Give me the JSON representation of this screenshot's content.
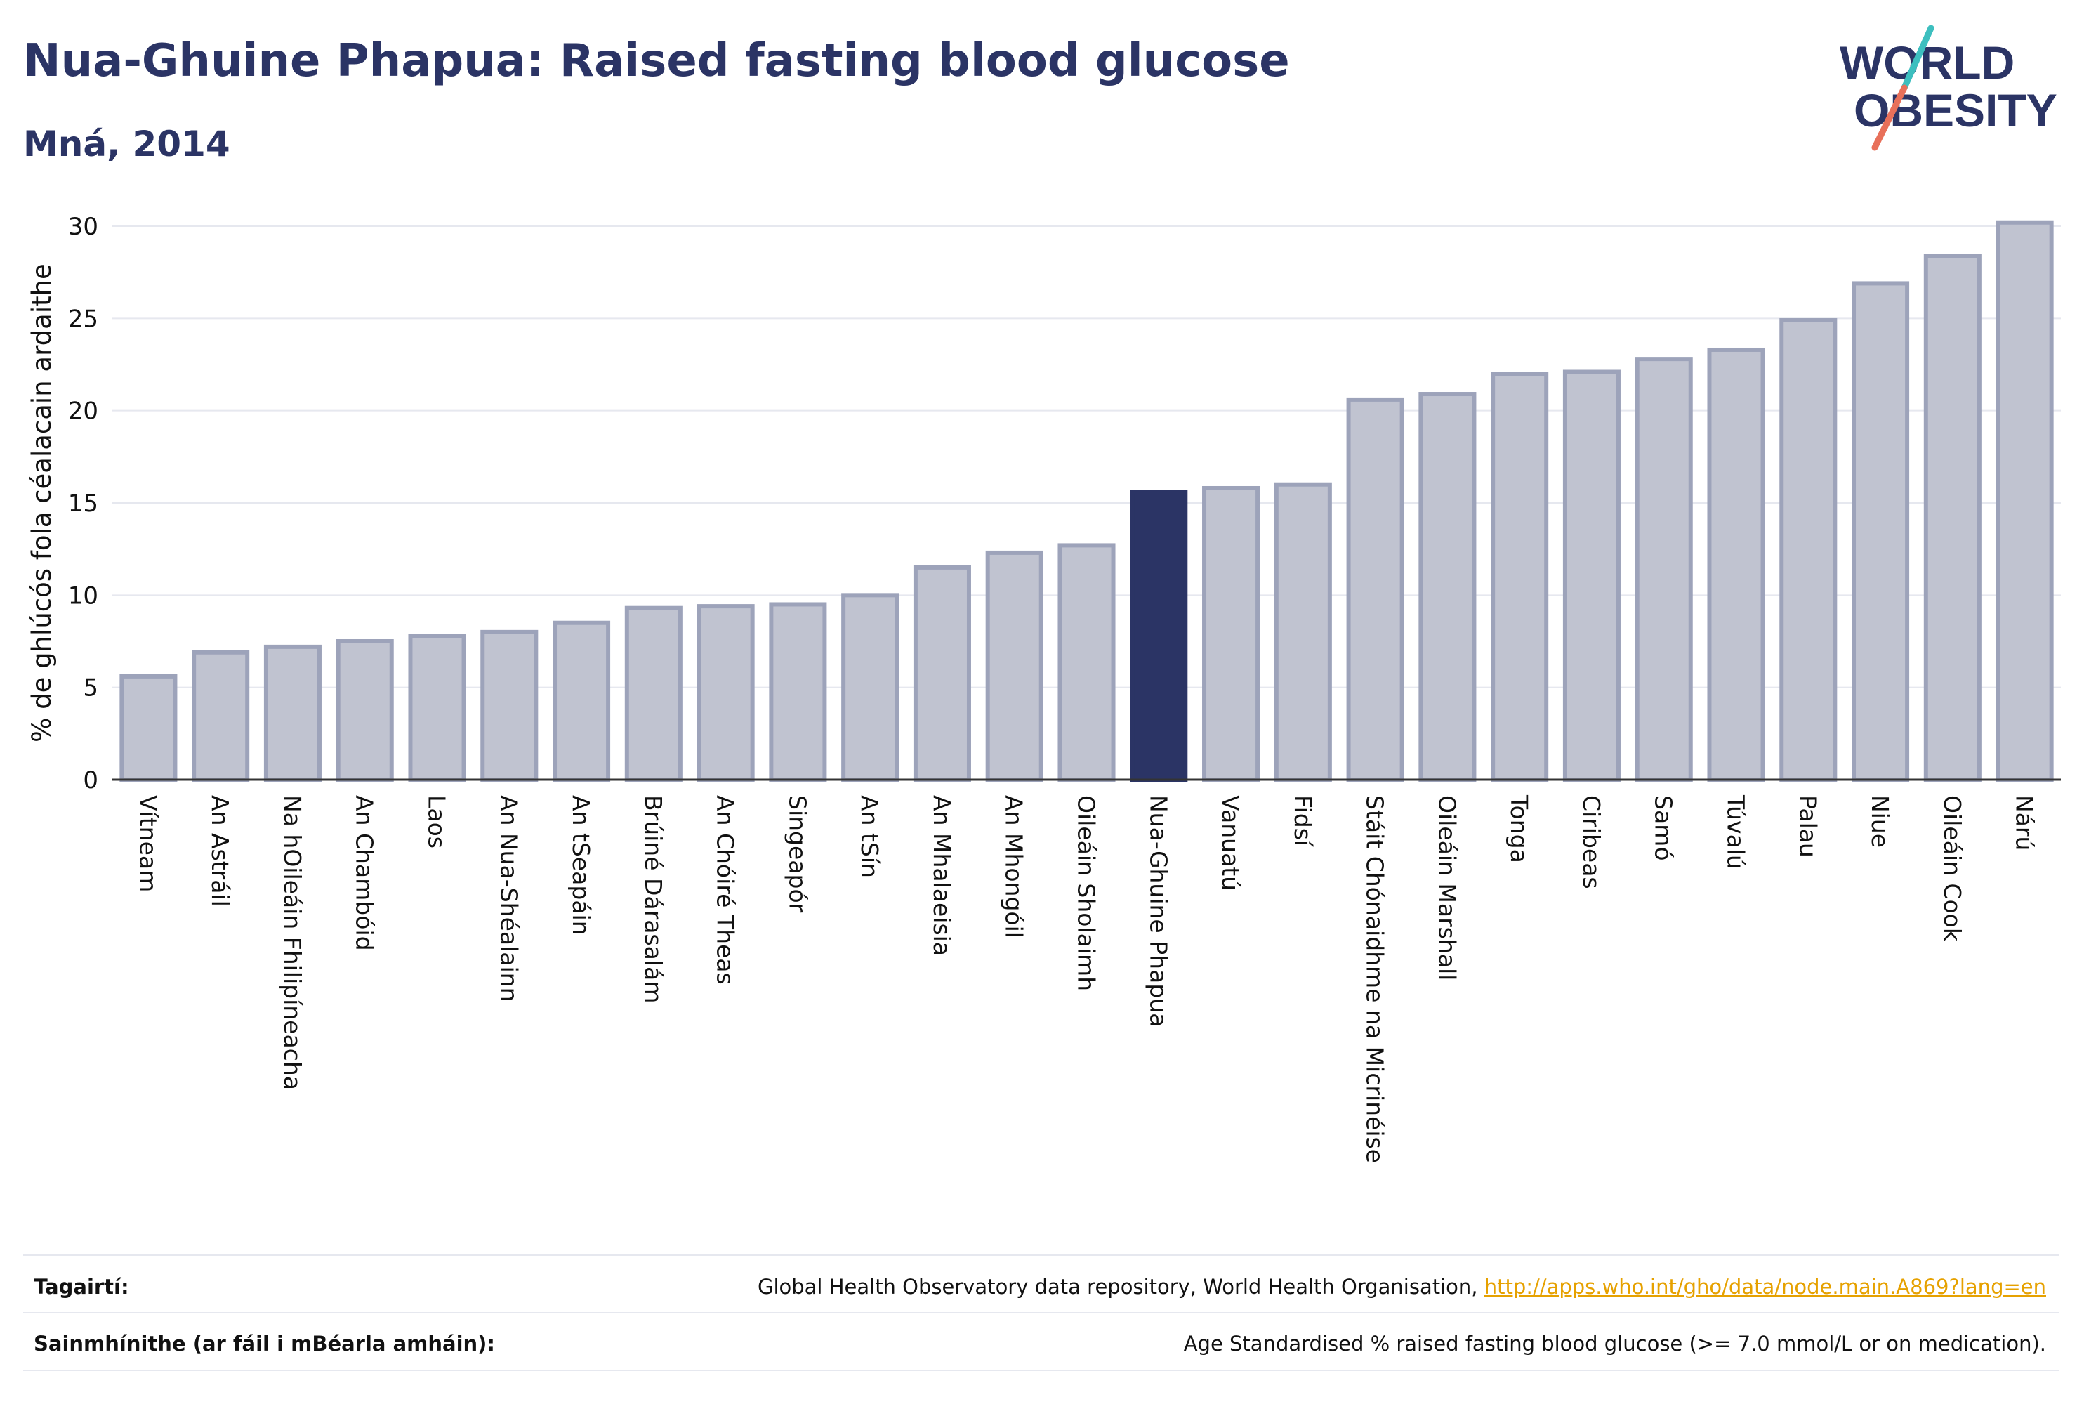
{
  "header": {
    "title": "Nua-Ghuine Phapua: Raised fasting blood glucose",
    "subtitle": "Mná, 2014"
  },
  "logo": {
    "line1": "WORLD",
    "line2": "OBESITY",
    "colors": {
      "text": "#2b3465",
      "slash_top": "#3dbfbf",
      "slash_bottom": "#e8705a"
    }
  },
  "colors": {
    "bar_fill": "#c0c3d0",
    "bar_stroke": "#9da3ba",
    "highlight_fill": "#2b3465",
    "text": "#2b3465",
    "grid": "#e6e8ef",
    "axis": "#333333"
  },
  "chart_data": {
    "type": "bar",
    "title": "Nua-Ghuine Phapua: Raised fasting blood glucose",
    "subtitle": "Mná, 2014",
    "ylabel": "% de ghlúcós fola céalacain ardaithe",
    "xlabel": "",
    "ylim": [
      0,
      30
    ],
    "yticks": [
      0,
      5,
      10,
      15,
      20,
      25,
      30
    ],
    "grid": true,
    "highlight": "Nua-Ghuine Phapua",
    "categories": [
      "Vítneam",
      "An Astráil",
      "Na hOileáin Fhilipíneacha",
      "An Chambóid",
      "Laos",
      "An Nua-Shéalainn",
      "An tSeapáin",
      "Brúiné Dárasalám",
      "An Chóiré Theas",
      "Singeapór",
      "An tSín",
      "An Mhalaeisia",
      "An Mhongóil",
      "Oileáin Sholaimh",
      "Nua-Ghuine Phapua",
      "Vanuatú",
      "Fidsí",
      "Stáit Chónaidhme na Micrinéise",
      "Oileáin Marshall",
      "Tonga",
      "Ciribeas",
      "Samó",
      "Túvalú",
      "Palau",
      "Niue",
      "Oileáin Cook",
      "Nárú"
    ],
    "values": [
      5.6,
      6.9,
      7.2,
      7.5,
      7.8,
      8.0,
      8.5,
      9.3,
      9.4,
      9.5,
      10.0,
      11.5,
      12.3,
      12.7,
      15.6,
      15.8,
      16.0,
      20.6,
      20.9,
      22.0,
      22.1,
      22.8,
      23.3,
      24.9,
      26.9,
      28.4,
      30.2
    ]
  },
  "footer": {
    "refs_label": "Tagairtí:",
    "refs_text": "Global Health Observatory data repository, World Health Organisation, ",
    "refs_link": "http://apps.who.int/gho/data/node.main.A869?lang=en",
    "defs_label": "Sainmhínithe (ar fáil i mBéarla amháin):",
    "defs_text": "Age Standardised % raised fasting blood glucose (>= 7.0 mmol/L or on medication)."
  }
}
